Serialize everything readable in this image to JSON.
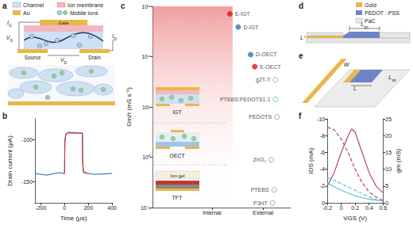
{
  "panel_labels": [
    "a",
    "b",
    "c",
    "d",
    "e",
    "f"
  ],
  "diagram_a": {
    "key_items": [
      "Channel",
      "Ion membrane",
      "Au",
      "Mobile ions"
    ],
    "electrodes": {
      "gate": "Gate",
      "source": "Source",
      "drain": "Drain"
    },
    "quantities": [
      {
        "text": "I",
        "sub": "G"
      },
      {
        "text": "V",
        "sub": "G"
      },
      {
        "text": "V",
        "sub": "D"
      },
      {
        "text": "I",
        "sub": "D"
      }
    ]
  },
  "diagram_d": {
    "key_items": [
      "Gold",
      "PEDOT : PSS",
      "PaC"
    ],
    "dimensions": [
      {
        "text": "L",
        "sub": "tot"
      },
      {
        "text": "L"
      }
    ]
  },
  "diagram_e": {
    "dimensions": [
      {
        "text": "W"
      },
      {
        "text": "L"
      },
      {
        "text": "L",
        "sub": "tot"
      }
    ]
  },
  "chart_data": [
    {
      "type": "line",
      "xlabel": "Time (μs)",
      "ylabel": "Drain current (μA)",
      "xlim": [
        -250,
        400
      ],
      "xticks": [
        -200,
        0,
        200,
        400
      ],
      "ylim": [
        -175,
        -75
      ],
      "yticks": [
        -150,
        -100
      ],
      "series": [
        {
          "color": "#1f5fb4",
          "line_style": "solid",
          "x": [
            -250,
            -150,
            -50,
            -1,
            0,
            1,
            3,
            10,
            30,
            150,
            151,
            153,
            160,
            250,
            400
          ],
          "values": [
            -140,
            -142,
            -139,
            -140,
            -140,
            -118,
            -100,
            -93,
            -91,
            -92,
            -110,
            -130,
            -139,
            -141,
            -140
          ]
        },
        {
          "color": "#d62728",
          "line_style": "solid",
          "x": [
            0,
            1,
            3,
            10,
            30,
            150,
            151,
            153,
            160,
            200
          ],
          "values": [
            -140,
            -120,
            -102,
            -94,
            -92,
            -92,
            -112,
            -128,
            -138,
            -140
          ]
        }
      ]
    },
    {
      "type": "scatter",
      "log": "y",
      "ylabel": "Gm/τ (mS s⁻¹)",
      "xlim": [
        0,
        1
      ],
      "xticks": [
        {
          "value": 0.43,
          "label": "Internal"
        },
        {
          "value": 0.8,
          "label": "External"
        }
      ],
      "ylim": [
        0.01,
        1000000
      ],
      "yticks": [
        {
          "value": 0.01,
          "label": "10⁻²"
        },
        {
          "value": 1,
          "label": "10⁰"
        },
        {
          "value": 100,
          "label": "10²"
        },
        {
          "value": 10000,
          "label": "10⁴"
        },
        {
          "value": 1000000,
          "label": "10⁶"
        }
      ],
      "shaded_x": [
        0,
        0.58
      ],
      "annotations": [
        "IGT",
        "OECT",
        "Ion gel",
        "TFT"
      ],
      "points": [
        {
          "label": "E-IGT",
          "x": 0.56,
          "y": 500000,
          "color": "#d7191c",
          "marker": "filled"
        },
        {
          "label": "D-IGT",
          "x": 0.62,
          "y": 150000,
          "color": "#2c7bb6",
          "marker": "filled"
        },
        {
          "label": "D-OECT",
          "x": 0.71,
          "y": 12000,
          "color": "#2c7bb6",
          "marker": "filled"
        },
        {
          "label": "E-OECT",
          "x": 0.74,
          "y": 4000,
          "color": "#d7191c",
          "marker": "filled"
        },
        {
          "label": "g2T-T",
          "x": 0.89,
          "y": 1200,
          "color": "#5aa0d0",
          "marker": "open"
        },
        {
          "label": "PTEBS:PEDOTS1:1",
          "x": 0.89,
          "y": 200,
          "color": "#5aa0d0",
          "marker": "open"
        },
        {
          "label": "PEDOTS",
          "x": 0.9,
          "y": 40,
          "color": "#5aa0d0",
          "marker": "open"
        },
        {
          "label": "ZnO₂",
          "x": 0.86,
          "y": 0.8,
          "color": "#5aa0d0",
          "marker": "open"
        },
        {
          "label": "PTEBS",
          "x": 0.88,
          "y": 0.05,
          "color": "#5aa0d0",
          "marker": "open"
        },
        {
          "label": "P3HT",
          "x": 0.87,
          "y": 0.015,
          "color": "#5aa0d0",
          "marker": "open"
        }
      ]
    },
    {
      "type": "line",
      "xlabel": "VGS (V)",
      "ylabel": "IDS (mA)",
      "y2label": "gm (mS)",
      "xlim": [
        -0.2,
        0.6
      ],
      "xticks": [
        -0.2,
        0,
        0.2,
        0.4,
        0.6
      ],
      "ylim": [
        0,
        -10
      ],
      "yticks": [
        0,
        -2,
        -4,
        -6,
        -8,
        -10
      ],
      "y2lim": [
        0,
        25
      ],
      "y2ticks": [
        0,
        5,
        10,
        15,
        20,
        25
      ],
      "x": [
        -0.2,
        -0.1,
        0,
        0.1,
        0.15,
        0.2,
        0.3,
        0.4,
        0.5,
        0.6
      ],
      "series": [
        {
          "color": "#b5476b",
          "line_style": "solid",
          "axis": "y2",
          "values": [
            5,
            9,
            15,
            20,
            22,
            21,
            15,
            9,
            5,
            3
          ]
        },
        {
          "color": "#b5476b",
          "line_style": "dashed",
          "values": [
            -9,
            -8.7,
            -7.6,
            -6,
            -5,
            -4,
            -2.4,
            -1.3,
            -0.7,
            -0.3
          ]
        },
        {
          "color": "#5bc0de",
          "line_style": "solid",
          "axis": "y2",
          "values": [
            6,
            4.8,
            3.8,
            2.9,
            2.5,
            2.1,
            1.5,
            1.1,
            0.8,
            0.5
          ]
        },
        {
          "color": "#5bc0de",
          "line_style": "dashed",
          "values": [
            -3,
            -2.7,
            -2.3,
            -1.9,
            -1.7,
            -1.5,
            -1.1,
            -0.7,
            -0.4,
            -0.2
          ]
        }
      ]
    }
  ]
}
